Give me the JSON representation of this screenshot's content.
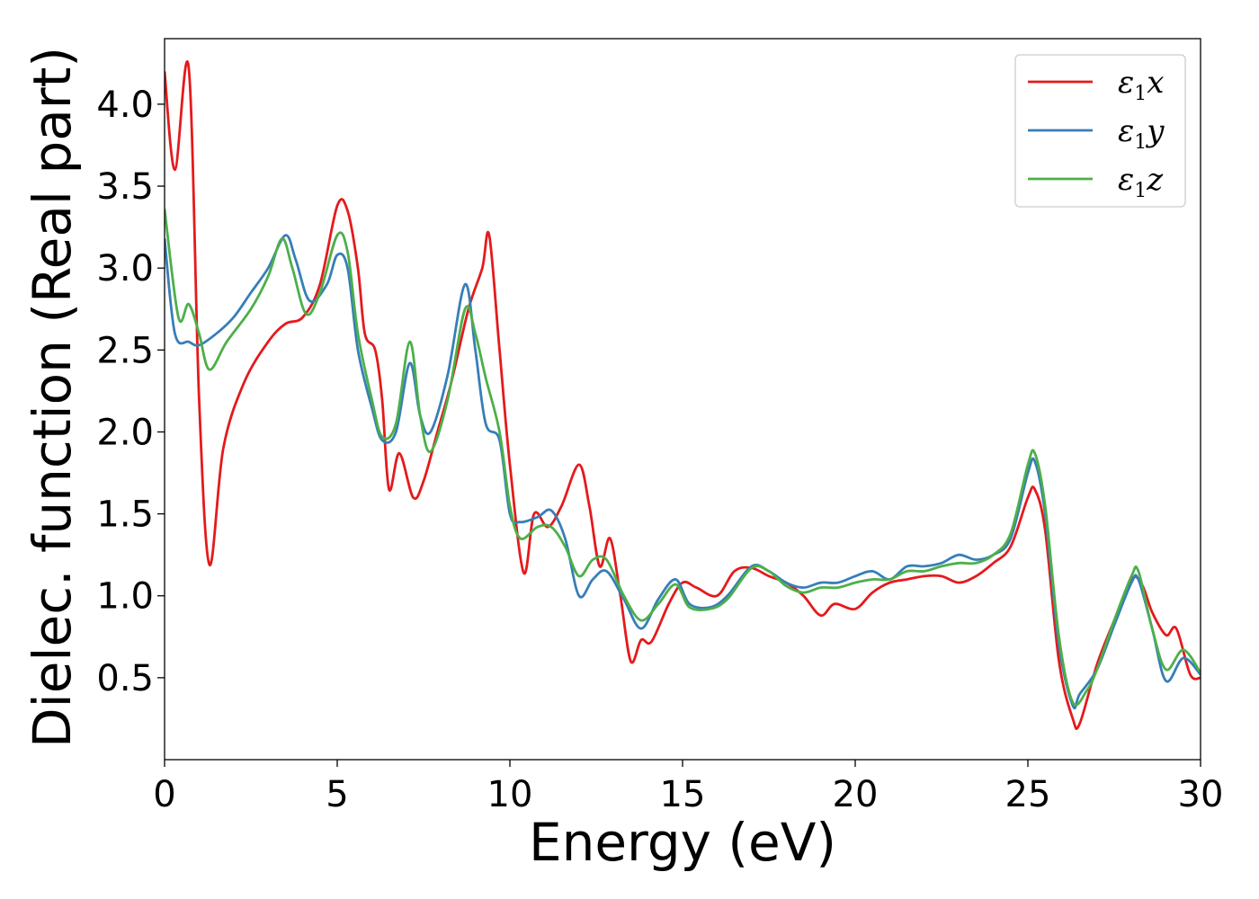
{
  "chart_data": {
    "type": "line",
    "title": "",
    "xlabel": "Energy (eV)",
    "ylabel": "Dielec. function (Real part)",
    "xlim": [
      0,
      30
    ],
    "ylim": [
      0.0,
      4.4
    ],
    "xticks": [
      0,
      5,
      10,
      15,
      20,
      25,
      30
    ],
    "xtick_labels": [
      "0",
      "5",
      "10",
      "15",
      "20",
      "25",
      "30"
    ],
    "yticks": [
      0.5,
      1.0,
      1.5,
      2.0,
      2.5,
      3.0,
      3.5,
      4.0
    ],
    "ytick_labels": [
      "0.5",
      "1.0",
      "1.5",
      "2.0",
      "2.5",
      "3.0",
      "3.5",
      "4.0"
    ],
    "grid": false,
    "legend_position": "top-right",
    "series": [
      {
        "name": "ε₁x",
        "legend_main": "ε",
        "legend_sub": "1",
        "legend_suffix": "x",
        "color": "#e41a1c",
        "points": [
          [
            0,
            4.2
          ],
          [
            0.3,
            3.6
          ],
          [
            0.7,
            4.22
          ],
          [
            1.0,
            2.2
          ],
          [
            1.3,
            1.19
          ],
          [
            1.7,
            1.9
          ],
          [
            2.3,
            2.3
          ],
          [
            3.0,
            2.55
          ],
          [
            3.5,
            2.66
          ],
          [
            4.0,
            2.7
          ],
          [
            4.5,
            2.9
          ],
          [
            5.0,
            3.38
          ],
          [
            5.3,
            3.35
          ],
          [
            5.6,
            3.0
          ],
          [
            5.8,
            2.6
          ],
          [
            6.1,
            2.5
          ],
          [
            6.3,
            2.2
          ],
          [
            6.5,
            1.65
          ],
          [
            6.8,
            1.87
          ],
          [
            7.2,
            1.6
          ],
          [
            7.5,
            1.7
          ],
          [
            7.9,
            2.0
          ],
          [
            8.3,
            2.3
          ],
          [
            8.8,
            2.75
          ],
          [
            9.2,
            3.0
          ],
          [
            9.4,
            3.2
          ],
          [
            9.7,
            2.5
          ],
          [
            10.0,
            1.8
          ],
          [
            10.4,
            1.14
          ],
          [
            10.7,
            1.5
          ],
          [
            11.1,
            1.42
          ],
          [
            11.5,
            1.55
          ],
          [
            12.0,
            1.8
          ],
          [
            12.3,
            1.55
          ],
          [
            12.6,
            1.18
          ],
          [
            12.9,
            1.35
          ],
          [
            13.2,
            1.0
          ],
          [
            13.5,
            0.6
          ],
          [
            13.8,
            0.73
          ],
          [
            14.1,
            0.72
          ],
          [
            14.6,
            0.95
          ],
          [
            15.0,
            1.08
          ],
          [
            15.4,
            1.05
          ],
          [
            16.0,
            1.0
          ],
          [
            16.5,
            1.15
          ],
          [
            17.0,
            1.17
          ],
          [
            17.5,
            1.12
          ],
          [
            18.0,
            1.08
          ],
          [
            18.5,
            1.0
          ],
          [
            19.0,
            0.88
          ],
          [
            19.4,
            0.95
          ],
          [
            20.0,
            0.92
          ],
          [
            20.5,
            1.02
          ],
          [
            21.0,
            1.08
          ],
          [
            21.5,
            1.1
          ],
          [
            22.0,
            1.12
          ],
          [
            22.5,
            1.12
          ],
          [
            23.0,
            1.08
          ],
          [
            23.5,
            1.12
          ],
          [
            24.0,
            1.2
          ],
          [
            24.5,
            1.3
          ],
          [
            25.0,
            1.6
          ],
          [
            25.2,
            1.65
          ],
          [
            25.5,
            1.4
          ],
          [
            25.9,
            0.6
          ],
          [
            26.3,
            0.25
          ],
          [
            26.5,
            0.22
          ],
          [
            27.0,
            0.58
          ],
          [
            27.5,
            0.85
          ],
          [
            28.0,
            1.1
          ],
          [
            28.3,
            1.07
          ],
          [
            28.6,
            0.9
          ],
          [
            29.0,
            0.76
          ],
          [
            29.3,
            0.8
          ],
          [
            29.7,
            0.52
          ],
          [
            30.0,
            0.5
          ]
        ]
      },
      {
        "name": "ε₁y",
        "legend_main": "ε",
        "legend_sub": "1",
        "legend_suffix": "y",
        "color": "#377eb8",
        "points": [
          [
            0,
            3.18
          ],
          [
            0.3,
            2.6
          ],
          [
            0.7,
            2.55
          ],
          [
            1.0,
            2.53
          ],
          [
            1.5,
            2.6
          ],
          [
            2.0,
            2.7
          ],
          [
            2.5,
            2.85
          ],
          [
            3.0,
            3.0
          ],
          [
            3.5,
            3.2
          ],
          [
            3.8,
            3.05
          ],
          [
            4.2,
            2.8
          ],
          [
            4.7,
            2.9
          ],
          [
            5.0,
            3.08
          ],
          [
            5.3,
            3.0
          ],
          [
            5.6,
            2.5
          ],
          [
            6.0,
            2.15
          ],
          [
            6.3,
            1.95
          ],
          [
            6.7,
            2.0
          ],
          [
            7.1,
            2.42
          ],
          [
            7.4,
            2.1
          ],
          [
            7.7,
            2.0
          ],
          [
            8.2,
            2.35
          ],
          [
            8.7,
            2.9
          ],
          [
            9.0,
            2.5
          ],
          [
            9.3,
            2.05
          ],
          [
            9.7,
            1.95
          ],
          [
            10.0,
            1.5
          ],
          [
            10.3,
            1.45
          ],
          [
            10.8,
            1.48
          ],
          [
            11.2,
            1.52
          ],
          [
            11.6,
            1.35
          ],
          [
            12.0,
            1.0
          ],
          [
            12.4,
            1.1
          ],
          [
            12.8,
            1.15
          ],
          [
            13.3,
            0.98
          ],
          [
            13.8,
            0.8
          ],
          [
            14.3,
            0.98
          ],
          [
            14.8,
            1.1
          ],
          [
            15.2,
            0.95
          ],
          [
            15.8,
            0.93
          ],
          [
            16.3,
            1.0
          ],
          [
            17.0,
            1.18
          ],
          [
            17.5,
            1.15
          ],
          [
            18.0,
            1.08
          ],
          [
            18.5,
            1.05
          ],
          [
            19.0,
            1.08
          ],
          [
            19.5,
            1.08
          ],
          [
            20.0,
            1.12
          ],
          [
            20.5,
            1.15
          ],
          [
            21.0,
            1.1
          ],
          [
            21.5,
            1.18
          ],
          [
            22.0,
            1.18
          ],
          [
            22.5,
            1.2
          ],
          [
            23.0,
            1.25
          ],
          [
            23.5,
            1.22
          ],
          [
            24.0,
            1.25
          ],
          [
            24.5,
            1.35
          ],
          [
            25.0,
            1.75
          ],
          [
            25.2,
            1.82
          ],
          [
            25.5,
            1.5
          ],
          [
            25.9,
            0.7
          ],
          [
            26.3,
            0.33
          ],
          [
            26.5,
            0.4
          ],
          [
            27.0,
            0.55
          ],
          [
            27.5,
            0.82
          ],
          [
            28.0,
            1.08
          ],
          [
            28.2,
            1.1
          ],
          [
            28.6,
            0.8
          ],
          [
            29.0,
            0.48
          ],
          [
            29.5,
            0.62
          ],
          [
            30.0,
            0.52
          ]
        ]
      },
      {
        "name": "ε₁z",
        "legend_main": "ε",
        "legend_sub": "1",
        "legend_suffix": "z",
        "color": "#4daf4a",
        "points": [
          [
            0,
            3.36
          ],
          [
            0.4,
            2.7
          ],
          [
            0.7,
            2.78
          ],
          [
            1.0,
            2.6
          ],
          [
            1.3,
            2.38
          ],
          [
            1.8,
            2.55
          ],
          [
            2.5,
            2.75
          ],
          [
            3.0,
            2.95
          ],
          [
            3.4,
            3.18
          ],
          [
            3.7,
            3.0
          ],
          [
            4.1,
            2.72
          ],
          [
            4.5,
            2.85
          ],
          [
            5.0,
            3.2
          ],
          [
            5.3,
            3.1
          ],
          [
            5.6,
            2.6
          ],
          [
            6.0,
            2.2
          ],
          [
            6.3,
            1.97
          ],
          [
            6.7,
            2.05
          ],
          [
            7.1,
            2.55
          ],
          [
            7.4,
            2.1
          ],
          [
            7.7,
            1.88
          ],
          [
            8.2,
            2.2
          ],
          [
            8.7,
            2.75
          ],
          [
            9.0,
            2.6
          ],
          [
            9.3,
            2.33
          ],
          [
            9.7,
            2.0
          ],
          [
            10.0,
            1.55
          ],
          [
            10.3,
            1.35
          ],
          [
            10.8,
            1.42
          ],
          [
            11.2,
            1.42
          ],
          [
            11.6,
            1.3
          ],
          [
            12.0,
            1.12
          ],
          [
            12.4,
            1.22
          ],
          [
            12.8,
            1.22
          ],
          [
            13.3,
            1.0
          ],
          [
            13.8,
            0.85
          ],
          [
            14.3,
            0.95
          ],
          [
            14.8,
            1.07
          ],
          [
            15.2,
            0.93
          ],
          [
            15.8,
            0.92
          ],
          [
            16.3,
            0.98
          ],
          [
            17.0,
            1.17
          ],
          [
            17.5,
            1.15
          ],
          [
            18.0,
            1.06
          ],
          [
            18.5,
            1.02
          ],
          [
            19.0,
            1.05
          ],
          [
            19.5,
            1.05
          ],
          [
            20.0,
            1.08
          ],
          [
            20.5,
            1.1
          ],
          [
            21.0,
            1.1
          ],
          [
            21.5,
            1.15
          ],
          [
            22.0,
            1.15
          ],
          [
            22.5,
            1.18
          ],
          [
            23.0,
            1.2
          ],
          [
            23.5,
            1.2
          ],
          [
            24.0,
            1.25
          ],
          [
            24.5,
            1.38
          ],
          [
            25.0,
            1.8
          ],
          [
            25.2,
            1.87
          ],
          [
            25.5,
            1.55
          ],
          [
            25.9,
            0.75
          ],
          [
            26.3,
            0.35
          ],
          [
            26.7,
            0.42
          ],
          [
            27.0,
            0.55
          ],
          [
            27.5,
            0.85
          ],
          [
            28.0,
            1.12
          ],
          [
            28.2,
            1.15
          ],
          [
            28.6,
            0.8
          ],
          [
            29.0,
            0.55
          ],
          [
            29.5,
            0.67
          ],
          [
            30.0,
            0.53
          ]
        ]
      }
    ]
  }
}
